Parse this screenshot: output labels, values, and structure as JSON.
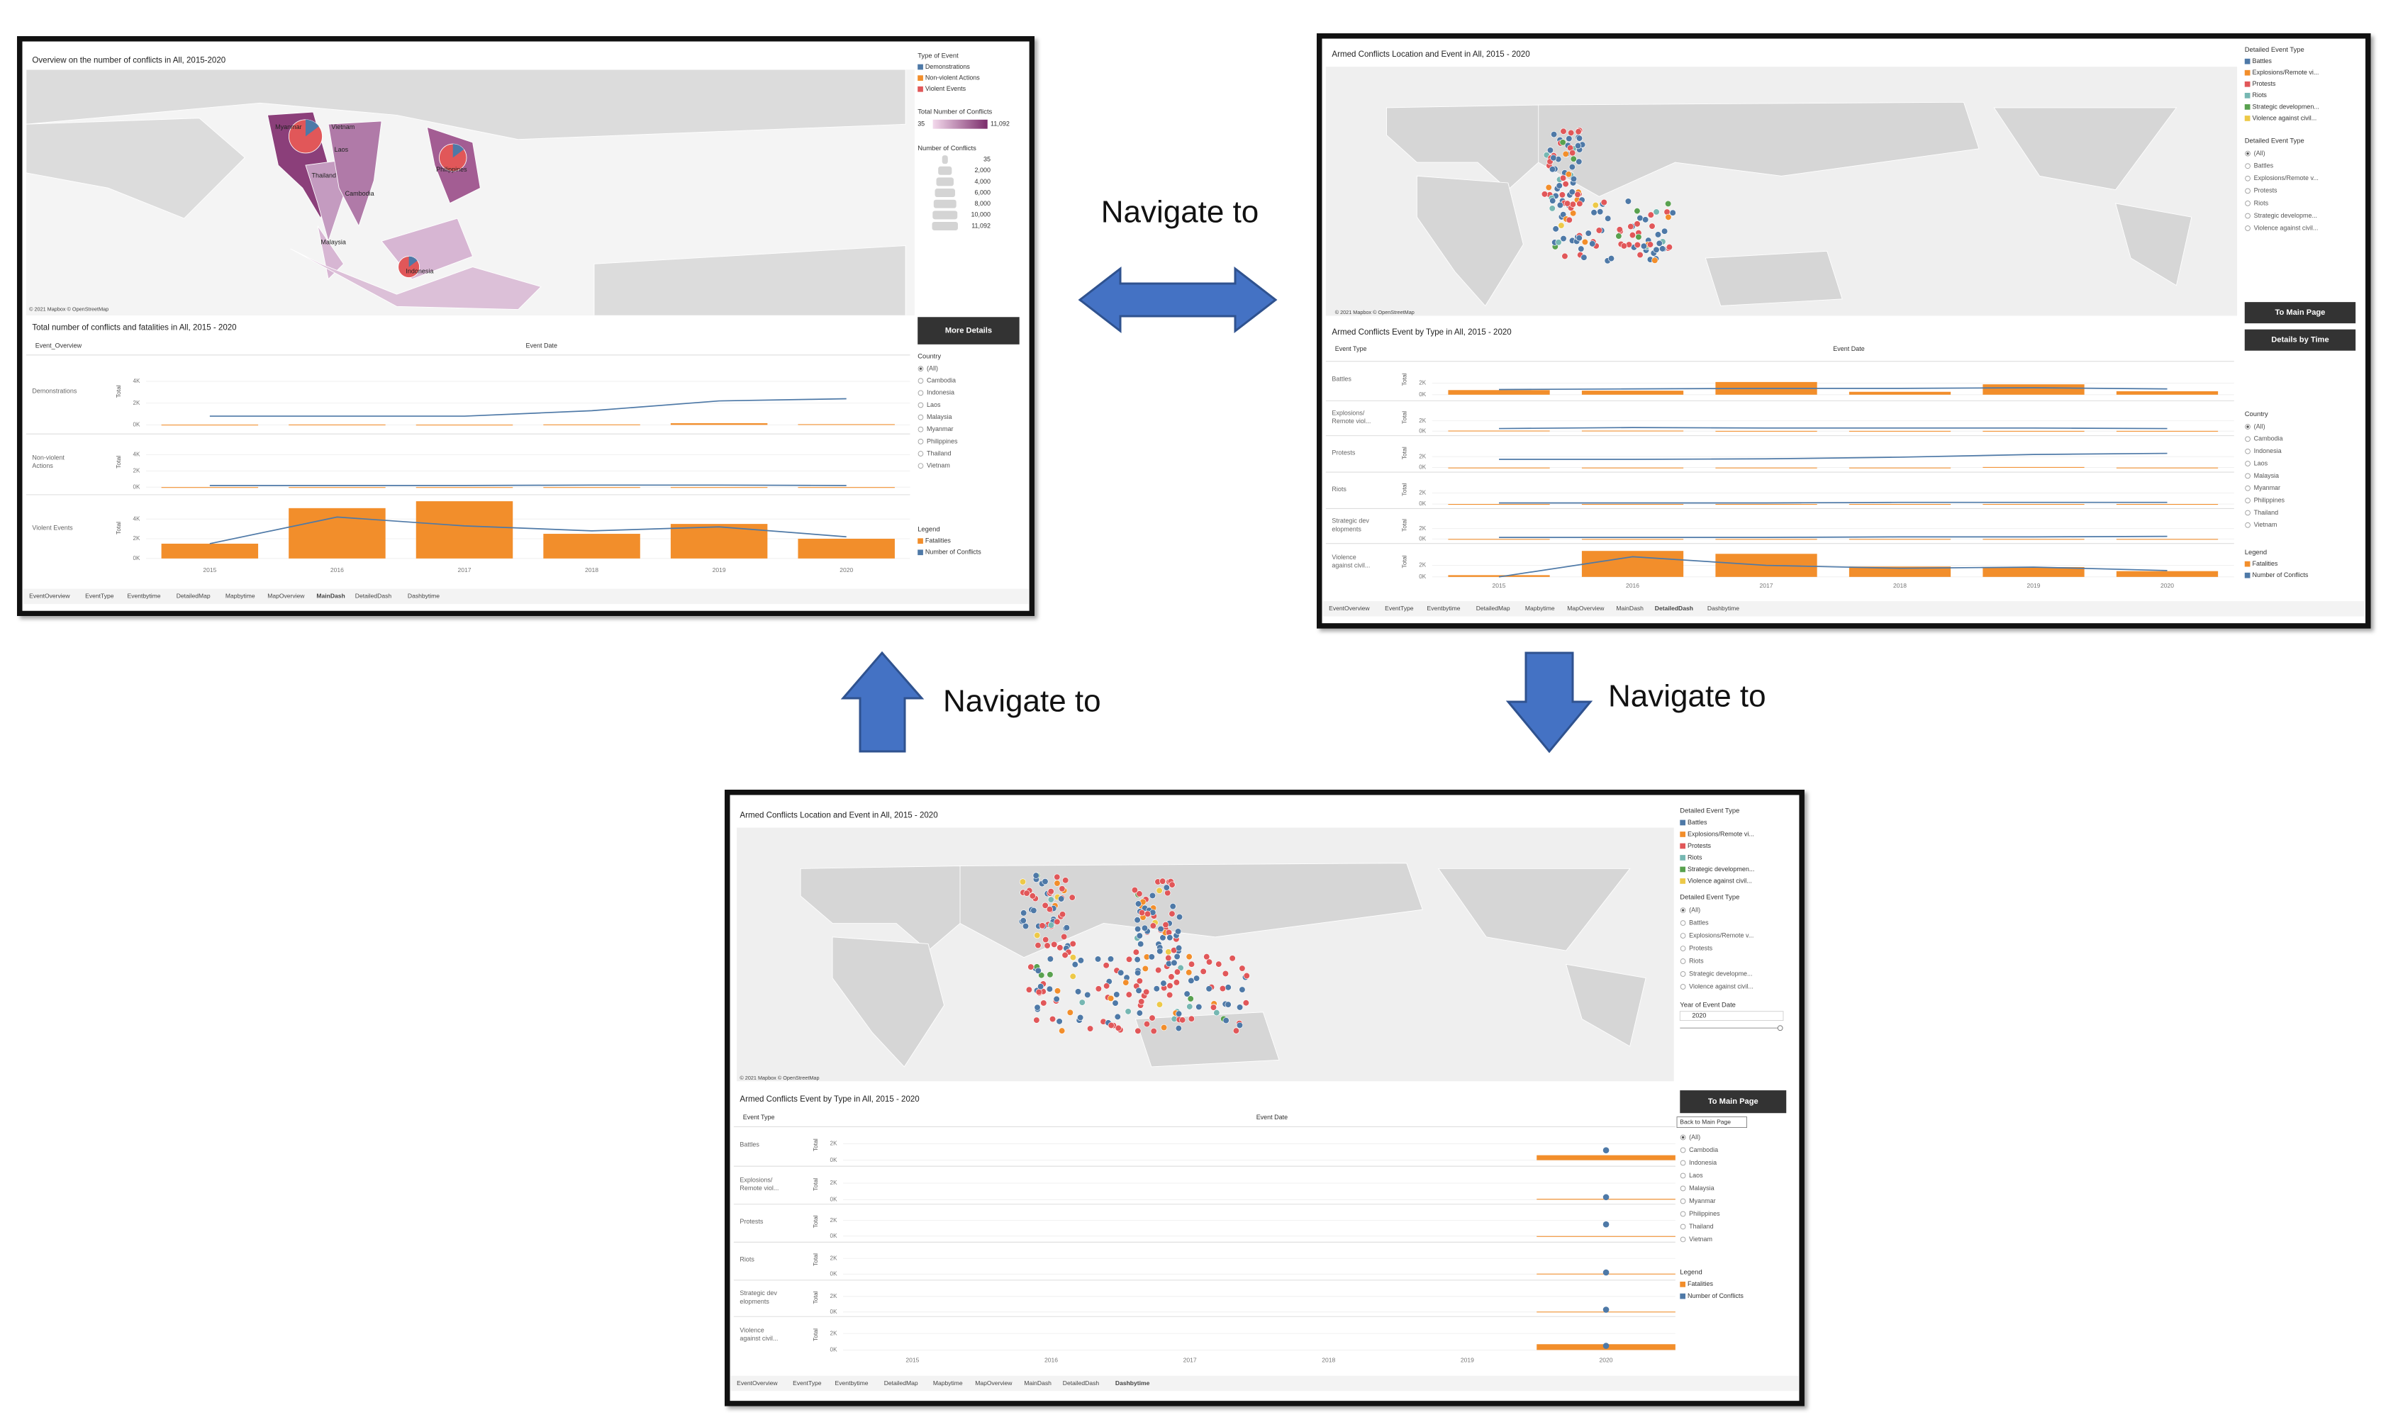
{
  "arrows": [
    {
      "label": "Navigate to"
    },
    {
      "label": "Navigate to"
    },
    {
      "label": "Navigate to"
    }
  ],
  "dashboards": [
    {
      "map_title": "Overview on the number of conflicts in All, 2015-2020",
      "map_labels": [
        "Myanmar",
        "Vietnam",
        "Laos",
        "Thailand",
        "Cambodia",
        "Philippines",
        "Malaysia",
        "Indonesia"
      ],
      "map_credit": "© 2021 Mapbox © OpenStreetMap",
      "color_legend": {
        "title": "Type of Event",
        "items": [
          {
            "name": "Demonstrations",
            "color": "#4e79a7"
          },
          {
            "name": "Non-violent Actions",
            "color": "#f28e2b"
          },
          {
            "name": "Violent Events",
            "color": "#e15759"
          }
        ]
      },
      "gradient_legend": {
        "title": "Total Number of Conflicts",
        "min": 35,
        "max": {
          "value": 11092,
          "label": "11,092"
        },
        "colors": [
          "#f3d9ec",
          "#7b2d6b"
        ]
      },
      "size_legend": {
        "title": "Number of Conflicts",
        "items": [
          35,
          {
            "value": 2000,
            "label": "2,000"
          },
          {
            "value": 4000,
            "label": "4,000"
          },
          {
            "value": 6000,
            "label": "6,000"
          },
          {
            "value": 8000,
            "label": "8,000"
          },
          {
            "value": 10000,
            "label": "10,000"
          },
          {
            "value": 11092,
            "label": "11,092"
          }
        ]
      },
      "buttons": [
        "More Details"
      ],
      "chart_title": "Total number of conflicts and fatalities in All, 2015 - 2020",
      "row_header": "Event_Overview",
      "column_header": "Event Date",
      "value_axis_title": "Total",
      "years": [
        2015,
        2016,
        2017,
        2018,
        2019,
        2020
      ],
      "ylim": [
        0,
        6000
      ],
      "yticks": [
        {
          "value": 0,
          "label": "0K"
        },
        {
          "value": 2000,
          "label": "2K"
        },
        {
          "value": 4000,
          "label": "4K"
        }
      ],
      "rows": [
        {
          "label": [
            "Demonstrations"
          ],
          "bars": [
            20,
            30,
            20,
            40,
            150,
            60
          ],
          "line": [
            800,
            800,
            800,
            1300,
            2200,
            2400
          ]
        },
        {
          "label": [
            "Non-violent",
            "Actions"
          ],
          "bars": [
            0,
            0,
            0,
            0,
            0,
            0
          ],
          "line": [
            200,
            200,
            200,
            250,
            250,
            200
          ]
        },
        {
          "label": [
            "Violent Events"
          ],
          "bars": [
            1500,
            5100,
            5800,
            2500,
            3500,
            2000
          ],
          "line": [
            1500,
            4200,
            3300,
            2800,
            3200,
            2200
          ]
        }
      ],
      "legend": {
        "title": "Legend",
        "series": [
          {
            "name": "Fatalities",
            "color": "#f28e2b"
          },
          {
            "name": "Number of Conflicts",
            "color": "#4e79a7"
          }
        ]
      },
      "country_filter": {
        "title": "Country",
        "options": [
          "(All)",
          "Cambodia",
          "Indonesia",
          "Laos",
          "Malaysia",
          "Myanmar",
          "Philippines",
          "Thailand",
          "Vietnam"
        ]
      },
      "tabs": [
        "EventOverview",
        "EventType",
        "Eventbytime",
        "DetailedMap",
        "Mapbytime",
        "MapOverview",
        "MainDash",
        "DetailedDash",
        "Dashbytime"
      ],
      "active_tab": 6
    },
    {
      "map_title": "Armed Conflicts Location and Event in All, 2015 - 2020",
      "map_credit": "© 2021 Mapbox © OpenStreetMap",
      "color_legend": {
        "title": "Detailed Event Type",
        "items": [
          {
            "name": "Battles",
            "color": "#4e79a7"
          },
          {
            "name": "Explosions/Remote vi...",
            "color": "#f28e2b"
          },
          {
            "name": "Protests",
            "color": "#e15759"
          },
          {
            "name": "Riots",
            "color": "#76b7b2"
          },
          {
            "name": "Strategic developmen...",
            "color": "#59a14f"
          },
          {
            "name": "Violence against civil...",
            "color": "#edc948"
          }
        ]
      },
      "event_filter": {
        "title": "Detailed Event Type",
        "options": [
          "(All)",
          "Battles",
          "Explosions/Remote v...",
          "Protests",
          "Riots",
          "Strategic developme...",
          "Violence against civil..."
        ]
      },
      "buttons": [
        "To Main Page",
        "Details by Time"
      ],
      "chart_title": "Armed Conflicts Event by Type in All, 2015 - 2020",
      "row_header": "Event Type",
      "column_header": "Event Date",
      "value_axis_title": "Total",
      "years": [
        2015,
        2016,
        2017,
        2018,
        2019,
        2020
      ],
      "ylim": [
        0,
        5000
      ],
      "yticks": [
        {
          "value": 0,
          "label": "0K"
        },
        {
          "value": 2000,
          "label": "2K"
        }
      ],
      "rows": [
        {
          "label": [
            "Battles"
          ],
          "bars": [
            800,
            700,
            2200,
            500,
            1800,
            600
          ],
          "line": [
            900,
            1000,
            1100,
            1100,
            1200,
            1000
          ]
        },
        {
          "label": [
            "Explosions/",
            "Remote viol..."
          ],
          "bars": [
            100,
            100,
            50,
            50,
            50,
            50
          ],
          "line": [
            500,
            700,
            600,
            600,
            600,
            500
          ]
        },
        {
          "label": [
            "Protests"
          ],
          "bars": [
            0,
            0,
            0,
            0,
            100,
            0
          ],
          "line": [
            1500,
            1500,
            1600,
            1900,
            2400,
            2600
          ]
        },
        {
          "label": [
            "Riots"
          ],
          "bars": [
            0,
            0,
            0,
            0,
            0,
            0
          ],
          "line": [
            200,
            200,
            200,
            300,
            300,
            300
          ]
        },
        {
          "label": [
            "Strategic dev",
            "elopments"
          ],
          "bars": [
            0,
            0,
            0,
            0,
            0,
            0
          ],
          "line": [
            300,
            300,
            300,
            400,
            400,
            500
          ]
        },
        {
          "label": [
            "Violence",
            "against civil..."
          ],
          "bars": [
            300,
            4500,
            4000,
            1800,
            1700,
            1000
          ],
          "line": [
            0,
            3500,
            2000,
            1500,
            1700,
            1100
          ]
        }
      ],
      "legend": {
        "title": "Legend",
        "series": [
          {
            "name": "Fatalities",
            "color": "#f28e2b"
          },
          {
            "name": "Number of Conflicts",
            "color": "#4e79a7"
          }
        ]
      },
      "country_filter": {
        "title": "Country",
        "options": [
          "(All)",
          "Cambodia",
          "Indonesia",
          "Laos",
          "Malaysia",
          "Myanmar",
          "Philippines",
          "Thailand",
          "Vietnam"
        ]
      },
      "tabs": [
        "EventOverview",
        "EventType",
        "Eventbytime",
        "DetailedMap",
        "Mapbytime",
        "MapOverview",
        "MainDash",
        "DetailedDash",
        "Dashbytime"
      ],
      "active_tab": 7
    },
    {
      "map_title": "Armed Conflicts Location and Event in All, 2015 - 2020",
      "map_credit": "© 2021 Mapbox © OpenStreetMap",
      "color_legend": {
        "title": "Detailed Event Type",
        "items": [
          {
            "name": "Battles",
            "color": "#4e79a7"
          },
          {
            "name": "Explosions/Remote vi...",
            "color": "#f28e2b"
          },
          {
            "name": "Protests",
            "color": "#e15759"
          },
          {
            "name": "Riots",
            "color": "#76b7b2"
          },
          {
            "name": "Strategic developmen...",
            "color": "#59a14f"
          },
          {
            "name": "Violence against civil...",
            "color": "#edc948"
          }
        ]
      },
      "event_filter": {
        "title": "Detailed Event Type",
        "options": [
          "(All)",
          "Battles",
          "Explosions/Remote v...",
          "Protests",
          "Riots",
          "Strategic developme...",
          "Violence against civil..."
        ]
      },
      "year_filter": {
        "title": "Year of Event Date",
        "value": 2020
      },
      "buttons": [
        "To Main Page"
      ],
      "tooltip": "Back to Main Page",
      "chart_title": "Armed Conflicts Event by Type in All, 2015 - 2020",
      "row_header": "Event Type",
      "column_header": "Event Date",
      "value_axis_title": "Total",
      "years": [
        2015,
        2016,
        2017,
        2018,
        2019,
        2020
      ],
      "ylim": [
        0,
        3500
      ],
      "yticks": [
        {
          "value": 0,
          "label": "0K"
        },
        {
          "value": 2000,
          "label": "2K"
        }
      ],
      "rows": [
        {
          "label": [
            "Battles"
          ],
          "bars": [
            null,
            null,
            null,
            null,
            null,
            600
          ],
          "line": [
            null,
            null,
            null,
            null,
            null,
            1200
          ]
        },
        {
          "label": [
            "Explosions/",
            "Remote viol..."
          ],
          "bars": [
            null,
            null,
            null,
            null,
            null,
            100
          ],
          "line": [
            null,
            null,
            null,
            null,
            null,
            300
          ]
        },
        {
          "label": [
            "Protests"
          ],
          "bars": [
            null,
            null,
            null,
            null,
            null,
            0
          ],
          "line": [
            null,
            null,
            null,
            null,
            null,
            1500
          ]
        },
        {
          "label": [
            "Riots"
          ],
          "bars": [
            null,
            null,
            null,
            null,
            null,
            50
          ],
          "line": [
            null,
            null,
            null,
            null,
            null,
            200
          ]
        },
        {
          "label": [
            "Strategic dev",
            "elopments"
          ],
          "bars": [
            null,
            null,
            null,
            null,
            null,
            50
          ],
          "line": [
            null,
            null,
            null,
            null,
            null,
            300
          ]
        },
        {
          "label": [
            "Violence",
            "against civil..."
          ],
          "bars": [
            null,
            null,
            null,
            null,
            null,
            700
          ],
          "line": [
            null,
            null,
            null,
            null,
            null,
            500
          ]
        }
      ],
      "legend": {
        "title": "Legend",
        "series": [
          {
            "name": "Fatalities",
            "color": "#f28e2b"
          },
          {
            "name": "Number of Conflicts",
            "color": "#4e79a7"
          }
        ]
      },
      "country_filter": {
        "options": [
          "(All)",
          "Cambodia",
          "Indonesia",
          "Laos",
          "Malaysia",
          "Myanmar",
          "Philippines",
          "Thailand",
          "Vietnam"
        ]
      },
      "tabs": [
        "EventOverview",
        "EventType",
        "Eventbytime",
        "DetailedMap",
        "Mapbytime",
        "MapOverview",
        "MainDash",
        "DetailedDash",
        "Dashbytime"
      ],
      "active_tab": 8
    }
  ]
}
